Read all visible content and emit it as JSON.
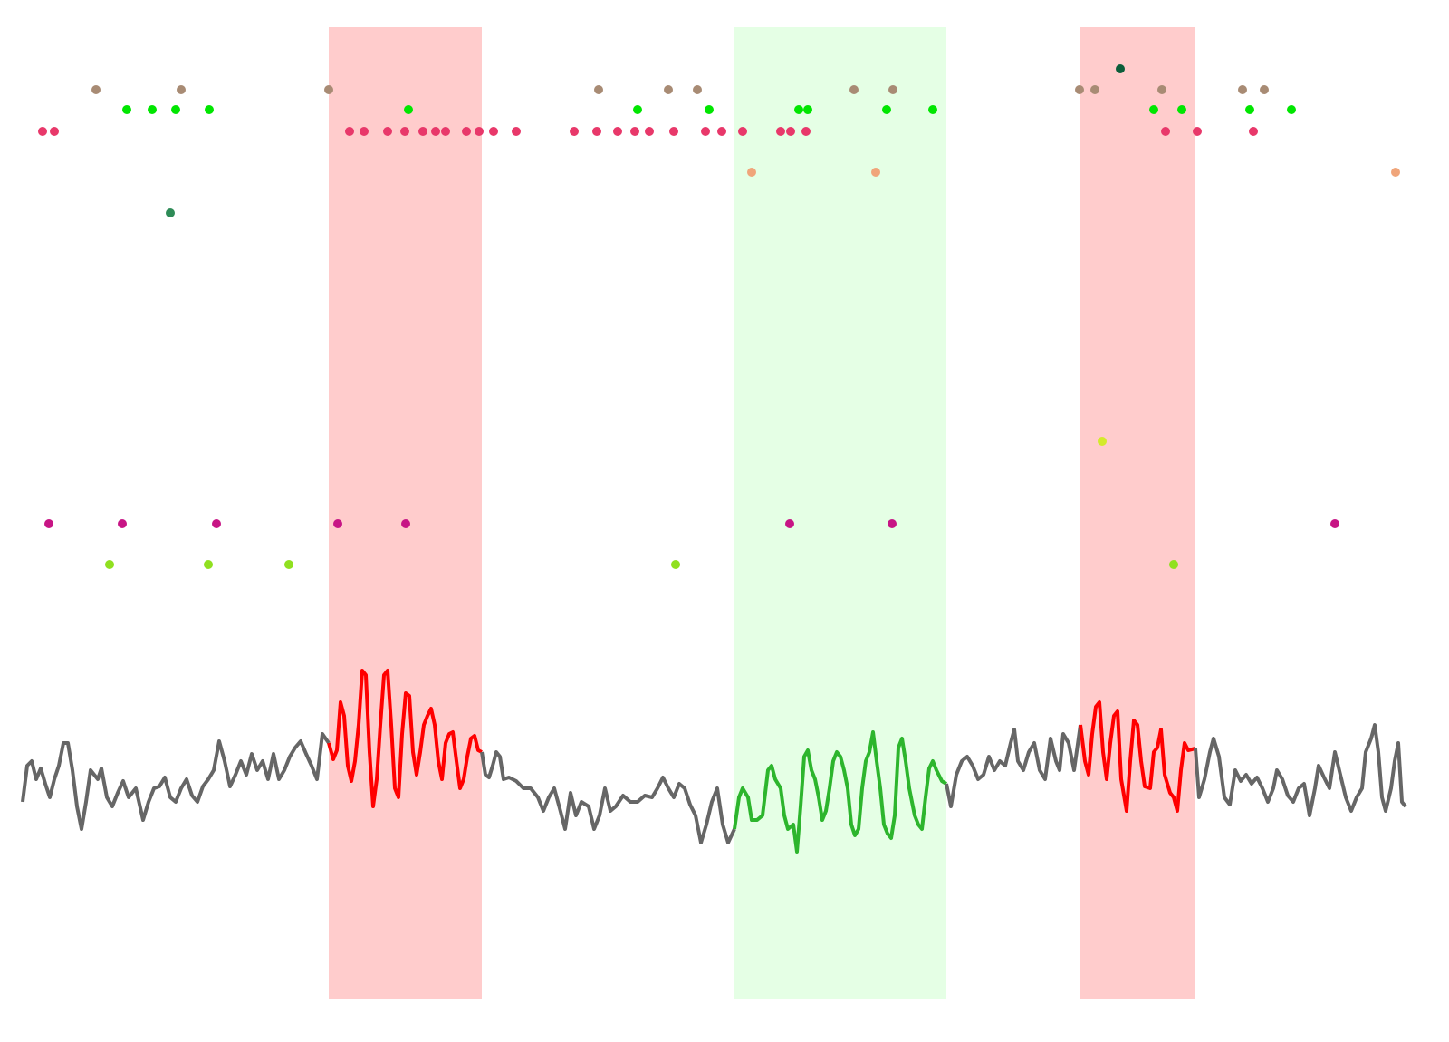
{
  "chart_data": {
    "type": "raster",
    "xlim": [
      0,
      1600
    ],
    "ylim": [
      1103,
      30
    ],
    "spans": [
      {
        "start": 363,
        "end": 532,
        "color": "#ffcccc"
      },
      {
        "start": 811,
        "end": 1045,
        "color": "#e5ffe5"
      },
      {
        "start": 1193,
        "end": 1320,
        "color": "#ffcccc"
      }
    ],
    "scatter_series": [
      {
        "color": "#0b5d3a",
        "x": [
          1237
        ],
        "values": [
          76
        ]
      },
      {
        "color": "#a88b74",
        "x": [
          106,
          200,
          363,
          661,
          738,
          770,
          943,
          986,
          1192,
          1209,
          1283,
          1372,
          1396
        ],
        "values": [
          99,
          99,
          99,
          99,
          99,
          99,
          99,
          99,
          99,
          99,
          99,
          99,
          99
        ]
      },
      {
        "color": "#00e600",
        "x": [
          140,
          168,
          194,
          231,
          451,
          704,
          783,
          882,
          892,
          979,
          1030,
          1274,
          1305,
          1380,
          1426
        ],
        "values": [
          121,
          121,
          121,
          121,
          121,
          121,
          121,
          121,
          121,
          121,
          121,
          121,
          121,
          121,
          121
        ]
      },
      {
        "color": "#e8386a",
        "x": [
          47,
          60,
          386,
          402,
          428,
          447,
          467,
          481,
          492,
          515,
          529,
          545,
          570,
          634,
          659,
          682,
          701,
          717,
          744,
          779,
          797,
          820,
          862,
          873,
          890,
          1287,
          1322,
          1384
        ],
        "values": [
          145,
          145,
          145,
          145,
          145,
          145,
          145,
          145,
          145,
          145,
          145,
          145,
          145,
          145,
          145,
          145,
          145,
          145,
          145,
          145,
          145,
          145,
          145,
          145,
          145,
          145,
          145,
          145
        ]
      },
      {
        "color": "#f0a57a",
        "x": [
          830,
          967,
          1541
        ],
        "values": [
          190,
          190,
          190
        ]
      },
      {
        "color": "#2e8b57",
        "x": [
          188
        ],
        "values": [
          235
        ]
      },
      {
        "color": "#d4ea2b",
        "x": [
          1217
        ],
        "values": [
          487
        ]
      },
      {
        "color": "#c71585",
        "x": [
          54,
          135,
          239,
          373,
          448,
          872,
          985,
          1474
        ],
        "values": [
          578,
          578,
          578,
          578,
          578,
          578,
          578,
          578
        ]
      },
      {
        "color": "#90e020",
        "x": [
          121,
          230,
          319,
          746,
          1296
        ],
        "values": [
          623,
          623,
          623,
          623,
          623
        ]
      }
    ],
    "line_series": [
      {
        "color": "#666666",
        "x": [
          25,
          30,
          35,
          40,
          45,
          50,
          55,
          60,
          65,
          70,
          75,
          80,
          85,
          90,
          95,
          100,
          108,
          112,
          118,
          124,
          130,
          136,
          142,
          150,
          158,
          164,
          170,
          176,
          182,
          188,
          194,
          200,
          206,
          212,
          218,
          224,
          230,
          236,
          242,
          248,
          254,
          260,
          266,
          272,
          278,
          284,
          290,
          296,
          302,
          308,
          314,
          320,
          326,
          332,
          338,
          344,
          350,
          356,
          363
        ],
        "values": [
          885,
          845,
          840,
          860,
          848,
          865,
          880,
          860,
          845,
          820,
          820,
          850,
          890,
          915,
          885,
          850,
          860,
          848,
          880,
          890,
          875,
          862,
          880,
          870,
          905,
          885,
          870,
          868,
          858,
          880,
          885,
          870,
          860,
          878,
          885,
          868,
          860,
          850,
          818,
          840,
          868,
          855,
          840,
          855,
          832,
          850,
          840,
          860,
          832,
          860,
          850,
          835,
          825,
          818,
          832,
          845,
          860,
          810,
          820
        ]
      },
      {
        "color": "#ff0000",
        "x": [
          363,
          368,
          372,
          376,
          380,
          384,
          388,
          392,
          396,
          400,
          404,
          408,
          412,
          416,
          420,
          424,
          428,
          432,
          436,
          440,
          444,
          448,
          452,
          456,
          460,
          464,
          468,
          472,
          476,
          480,
          484,
          488,
          492,
          496,
          500,
          504,
          508,
          512,
          516,
          520,
          524,
          528,
          532
        ],
        "values": [
          820,
          838,
          828,
          775,
          790,
          845,
          862,
          840,
          800,
          740,
          745,
          830,
          890,
          860,
          800,
          745,
          740,
          800,
          870,
          880,
          810,
          765,
          768,
          830,
          855,
          830,
          800,
          790,
          782,
          800,
          840,
          860,
          820,
          810,
          808,
          840,
          870,
          860,
          835,
          815,
          812,
          828,
          830
        ]
      },
      {
        "color": "#666666",
        "x": [
          532,
          536,
          540,
          544,
          548,
          552,
          556,
          562,
          570,
          578,
          586,
          594,
          600,
          606,
          612,
          618,
          624,
          630,
          636,
          642,
          650,
          656,
          662,
          668,
          674,
          680,
          688,
          696,
          704,
          712,
          720,
          726,
          732,
          738,
          744,
          750,
          756,
          762,
          768,
          774,
          780,
          786,
          792,
          798,
          804,
          811
        ],
        "values": [
          830,
          855,
          858,
          845,
          830,
          835,
          860,
          858,
          862,
          870,
          870,
          880,
          895,
          880,
          870,
          892,
          915,
          875,
          900,
          885,
          890,
          915,
          900,
          870,
          895,
          890,
          878,
          885,
          885,
          878,
          880,
          870,
          858,
          870,
          880,
          865,
          870,
          888,
          900,
          930,
          910,
          885,
          870,
          910,
          930,
          915
        ]
      },
      {
        "color": "#2db52d",
        "x": [
          811,
          816,
          820,
          826,
          830,
          836,
          842,
          848,
          852,
          856,
          862,
          866,
          870,
          876,
          880,
          884,
          888,
          892,
          896,
          900,
          904,
          908,
          912,
          916,
          920,
          924,
          928,
          932,
          936,
          940,
          944,
          948,
          952,
          956,
          960,
          964,
          968,
          972,
          976,
          980,
          984,
          988,
          992,
          996,
          1000,
          1004,
          1010,
          1014,
          1018,
          1022,
          1026,
          1030,
          1034,
          1040,
          1045
        ],
        "values": [
          915,
          880,
          870,
          880,
          905,
          905,
          900,
          850,
          845,
          860,
          870,
          900,
          915,
          910,
          940,
          890,
          835,
          828,
          850,
          860,
          880,
          905,
          895,
          870,
          840,
          830,
          835,
          850,
          870,
          910,
          922,
          915,
          870,
          840,
          830,
          808,
          840,
          870,
          910,
          920,
          925,
          900,
          825,
          815,
          840,
          870,
          900,
          910,
          915,
          880,
          848,
          840,
          850,
          862,
          865
        ]
      },
      {
        "color": "#666666",
        "x": [
          1045,
          1050,
          1056,
          1062,
          1068,
          1074,
          1080,
          1086,
          1092,
          1098,
          1104,
          1110,
          1116,
          1120,
          1124,
          1130,
          1136,
          1142,
          1148,
          1154,
          1160,
          1166,
          1170,
          1174,
          1180,
          1186,
          1193
        ],
        "values": [
          865,
          890,
          855,
          840,
          835,
          845,
          860,
          855,
          835,
          850,
          840,
          845,
          820,
          805,
          840,
          850,
          830,
          820,
          850,
          860,
          815,
          840,
          850,
          810,
          820,
          850,
          800
        ]
      },
      {
        "color": "#ff0000",
        "x": [
          1193,
          1198,
          1202,
          1206,
          1210,
          1214,
          1218,
          1222,
          1226,
          1230,
          1234,
          1238,
          1244,
          1248,
          1252,
          1256,
          1260,
          1264,
          1270,
          1274,
          1278,
          1282,
          1286,
          1292,
          1296,
          1300,
          1304,
          1308,
          1312,
          1320
        ],
        "values": [
          800,
          840,
          855,
          810,
          780,
          775,
          830,
          860,
          820,
          790,
          785,
          860,
          895,
          840,
          795,
          800,
          840,
          868,
          870,
          830,
          825,
          805,
          855,
          875,
          880,
          895,
          850,
          820,
          828,
          826
        ]
      },
      {
        "color": "#666666",
        "x": [
          1320,
          1324,
          1330,
          1336,
          1340,
          1346,
          1352,
          1358,
          1364,
          1370,
          1376,
          1382,
          1388,
          1394,
          1400,
          1406,
          1410,
          1416,
          1422,
          1428,
          1434,
          1440,
          1446,
          1452,
          1456,
          1462,
          1468,
          1474,
          1480,
          1486,
          1492,
          1498,
          1504,
          1508,
          1514,
          1518,
          1522,
          1526,
          1530,
          1536,
          1540,
          1544,
          1548,
          1552
        ],
        "values": [
          826,
          880,
          860,
          830,
          815,
          835,
          880,
          888,
          850,
          862,
          855,
          865,
          858,
          870,
          885,
          870,
          850,
          860,
          878,
          885,
          870,
          865,
          900,
          870,
          845,
          858,
          870,
          830,
          855,
          880,
          895,
          880,
          870,
          830,
          815,
          800,
          830,
          880,
          895,
          870,
          840,
          820,
          885,
          890
        ]
      }
    ]
  }
}
